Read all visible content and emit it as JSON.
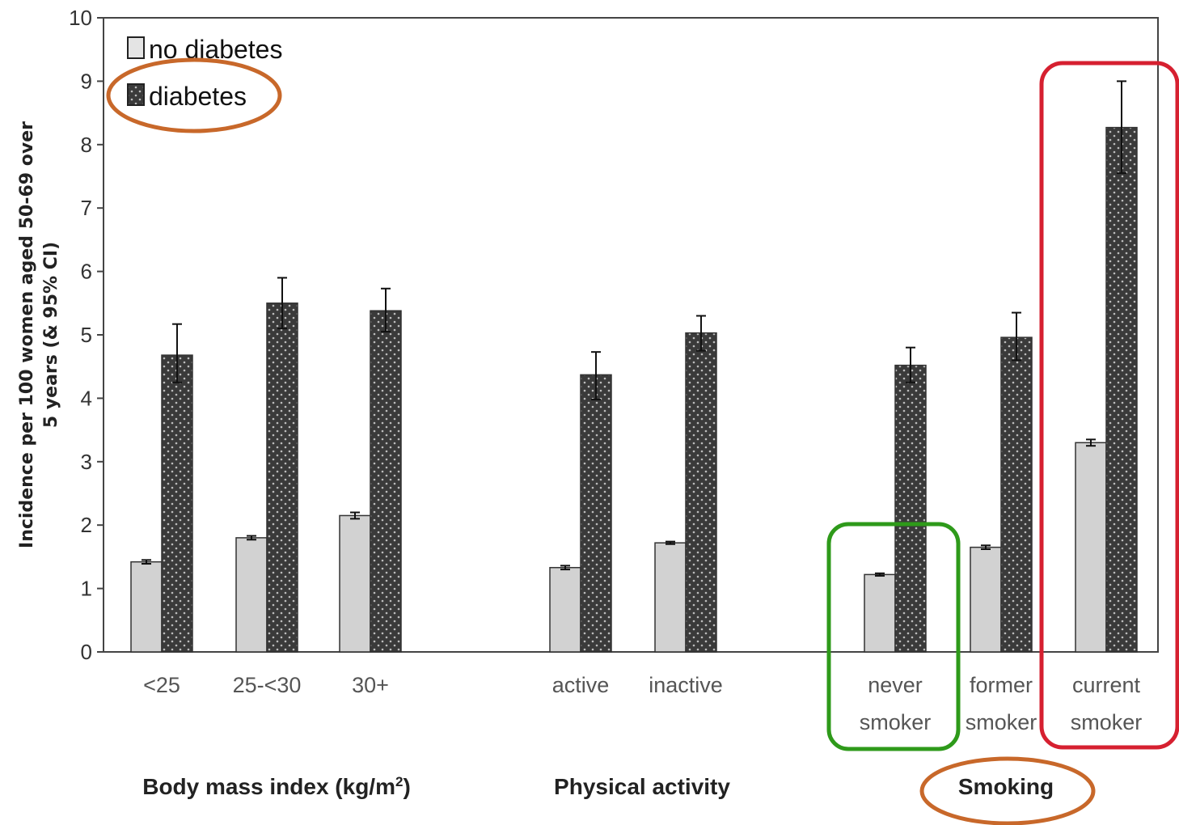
{
  "chart_data": {
    "type": "bar",
    "ylabel_lines": [
      "Incidence per 100 women aged 50-69 over",
      "5 years (& 95% CI)"
    ],
    "ylim": [
      0,
      10
    ],
    "yticks": [
      0,
      1,
      2,
      3,
      4,
      5,
      6,
      7,
      8,
      9,
      10
    ],
    "legend": {
      "position": "top-left",
      "entries": [
        "no diabetes",
        "diabetes"
      ]
    },
    "series": [
      {
        "name": "no diabetes",
        "color": "#d2d2d2",
        "pattern": "plain",
        "values": [
          1.42,
          1.8,
          2.15,
          1.33,
          1.72,
          1.22,
          1.65,
          3.3
        ],
        "ci_low": [
          1.39,
          1.77,
          2.1,
          1.3,
          1.7,
          1.2,
          1.62,
          3.25
        ],
        "ci_high": [
          1.45,
          1.83,
          2.2,
          1.36,
          1.74,
          1.24,
          1.68,
          3.35
        ]
      },
      {
        "name": "diabetes",
        "color": "#3a3a3a",
        "pattern": "dotted",
        "values": [
          4.68,
          5.5,
          5.38,
          4.37,
          5.03,
          4.52,
          4.96,
          8.27
        ],
        "ci_low": [
          4.25,
          5.1,
          5.05,
          3.98,
          4.75,
          4.25,
          4.6,
          7.55
        ],
        "ci_high": [
          5.17,
          5.9,
          5.73,
          4.73,
          5.3,
          4.8,
          5.35,
          9.0
        ]
      }
    ],
    "groups": [
      {
        "label": "Body mass index (kg/m",
        "superscript": "2",
        "label_suffix": ")",
        "categories": [
          {
            "lines": [
              "<25"
            ]
          },
          {
            "lines": [
              "25-<30"
            ]
          },
          {
            "lines": [
              "30+"
            ]
          }
        ]
      },
      {
        "label": "Physical activity",
        "superscript": "",
        "label_suffix": "",
        "categories": [
          {
            "lines": [
              "active"
            ]
          },
          {
            "lines": [
              "inactive"
            ]
          }
        ]
      },
      {
        "label": "Smoking",
        "superscript": "",
        "label_suffix": "",
        "categories": [
          {
            "lines": [
              "never",
              "smoker"
            ]
          },
          {
            "lines": [
              "former",
              "smoker"
            ]
          },
          {
            "lines": [
              "current",
              "smoker"
            ]
          }
        ]
      }
    ],
    "annotations": [
      {
        "shape": "ellipse",
        "color": "#c8682a",
        "target": "legend-diabetes"
      },
      {
        "shape": "ellipse",
        "color": "#c8682a",
        "target": "group-label-smoking"
      },
      {
        "shape": "rounded-rect",
        "color": "#2e9a1a",
        "target": "category-never-smoker"
      },
      {
        "shape": "rounded-rect",
        "color": "#d62030",
        "target": "category-current-smoker"
      }
    ]
  }
}
